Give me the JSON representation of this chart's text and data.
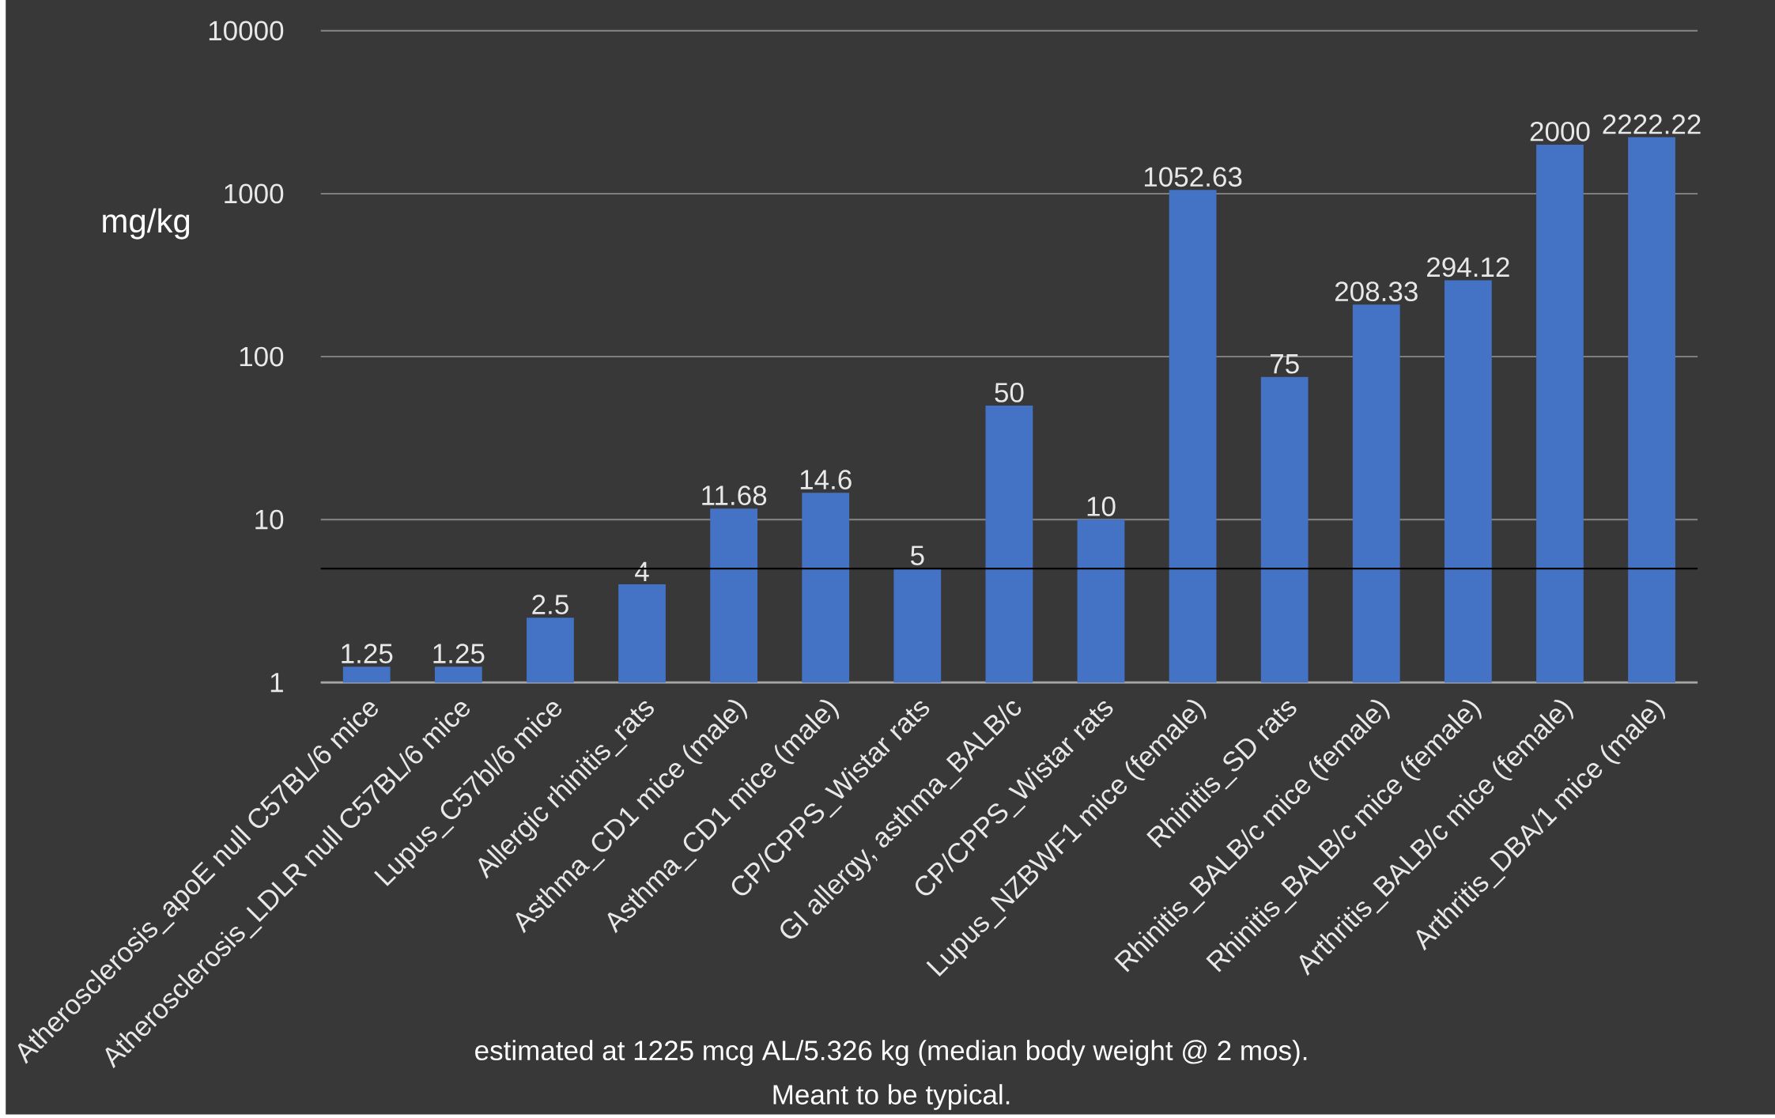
{
  "chart_data": {
    "type": "bar",
    "ylabel": "mg/kg",
    "categories": [
      "Atherosclerosis_apoE null C57BL/6 mice",
      "Atherosclerosis_LDLR null C57BL/6 mice",
      "Lupus_C57bl/6 mice",
      "Allergic rhinitis_rats",
      "Asthma_CD1 mice (male)",
      "Asthma_CD1 mice (male)",
      "CP/CPPS_Wistar rats",
      "GI allergy, asthma_BALB/c",
      "CP/CPPS_Wistar rats",
      "Lupus_NZBWF1 mice (female)",
      "Rhinitis_SD rats",
      "Rhinitis_BALB/c mice (female)",
      "Rhinitis_BALB/c mice (female)",
      "Arthritis_BALB/c mice (female)",
      "Arthritis_DBA/1 mice (male)"
    ],
    "values": [
      1.25,
      1.25,
      2.5,
      4,
      11.68,
      14.6,
      5,
      50,
      10,
      1052.63,
      75,
      208.33,
      294.12,
      2000,
      2222.22
    ],
    "color": "#4472c4",
    "data_labels": true,
    "log": true,
    "grid": "y",
    "ylim": [
      1,
      10000
    ],
    "yticks": [
      1,
      10,
      100,
      1000,
      10000
    ],
    "ref_lines": [
      {
        "axis": "y",
        "value": 5,
        "color": "#000000"
      }
    ],
    "annotations": [
      "estimated at 1225 mcg AL/5.326 kg (median body weight @ 2 mos).",
      "Meant to be typical."
    ]
  }
}
